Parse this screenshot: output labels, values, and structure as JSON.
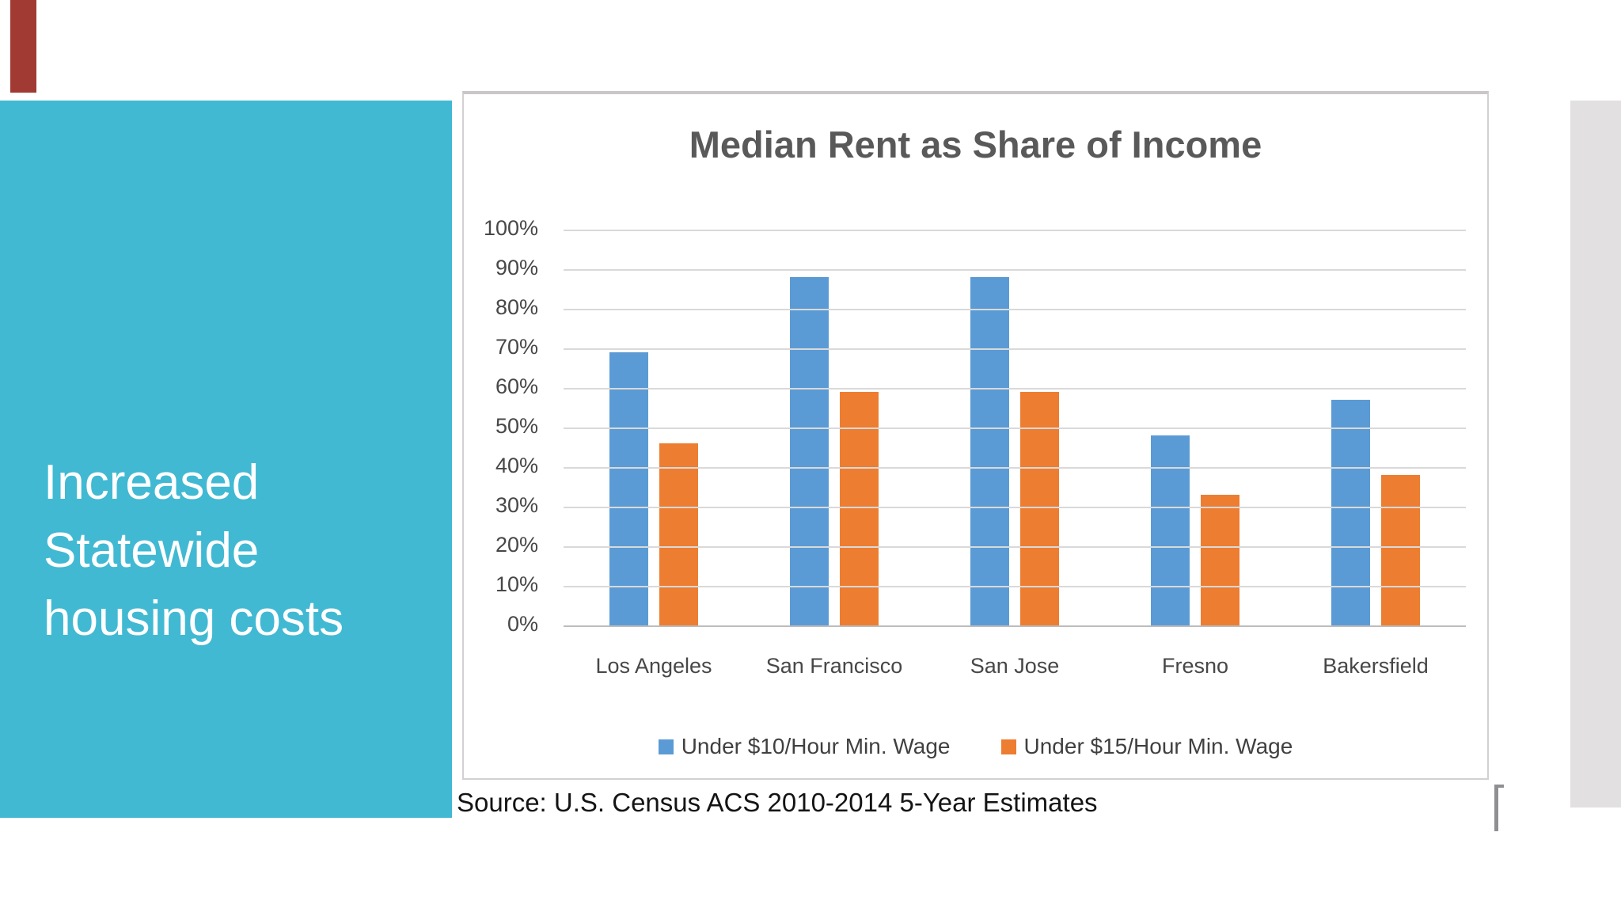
{
  "slide": {
    "panel_title_lines": [
      "Increased",
      "Statewide",
      "housing costs"
    ],
    "source_text": "Source: U.S. Census ACS 2010-2014 5-Year Estimates"
  },
  "colors": {
    "teal_panel": "#41B9D3",
    "red_accent_bar": "#A13A33",
    "right_gray_strip": "#E2E0E1",
    "gridline": "#D9D9D9",
    "axis_text": "#474747",
    "title_text": "#595959",
    "series_blue": "#5B9BD5",
    "series_orange": "#ED7D31"
  },
  "chart_data": {
    "type": "bar",
    "title": "Median Rent as Share of Income",
    "categories": [
      "Los Angeles",
      "San Francisco",
      "San Jose",
      "Fresno",
      "Bakersfield"
    ],
    "series": [
      {
        "name": "Under $10/Hour Min. Wage",
        "color": "#5B9BD5",
        "values": [
          69,
          88,
          88,
          48,
          57
        ]
      },
      {
        "name": "Under $15/Hour Min. Wage",
        "color": "#ED7D31",
        "values": [
          46,
          59,
          59,
          33,
          38
        ]
      }
    ],
    "ylabel": "",
    "xlabel": "",
    "ylim": [
      0,
      100
    ],
    "y_tick_step": 10,
    "y_tick_labels": [
      "100%",
      "90%",
      "80%",
      "70%",
      "60%",
      "50%",
      "40%",
      "30%",
      "20%",
      "10%",
      "0%"
    ],
    "grid": true,
    "legend_position": "bottom"
  }
}
